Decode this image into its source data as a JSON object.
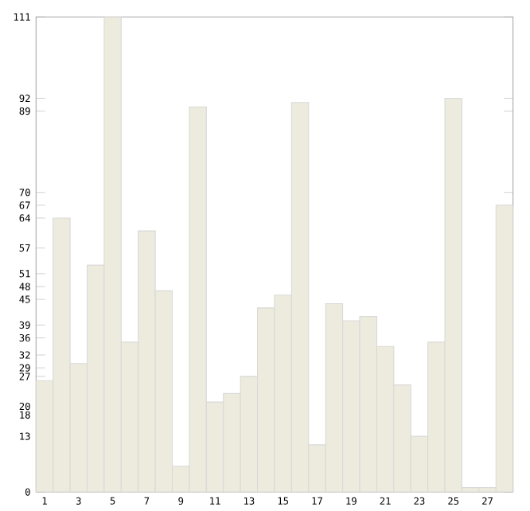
{
  "chart_data": {
    "type": "bar",
    "categories": [
      "1",
      null,
      "3",
      null,
      "5",
      null,
      "7",
      null,
      "9",
      null,
      "11",
      null,
      "13",
      null,
      "15",
      null,
      "17",
      null,
      "19",
      null,
      "21",
      null,
      "23",
      null,
      "25",
      null,
      "27",
      null
    ],
    "values": [
      26,
      64,
      30,
      53,
      111,
      35,
      61,
      47,
      6,
      90,
      21,
      23,
      27,
      43,
      46,
      91,
      11,
      44,
      40,
      41,
      34,
      25,
      13,
      35,
      92,
      1,
      1,
      67
    ],
    "color": "#ecebdd",
    "ylim": [
      0,
      111
    ],
    "yticks": [
      0,
      13,
      18,
      20,
      27,
      29,
      32,
      36,
      39,
      45,
      48,
      51,
      57,
      64,
      67,
      70,
      89,
      92,
      111
    ],
    "grid": false
  }
}
